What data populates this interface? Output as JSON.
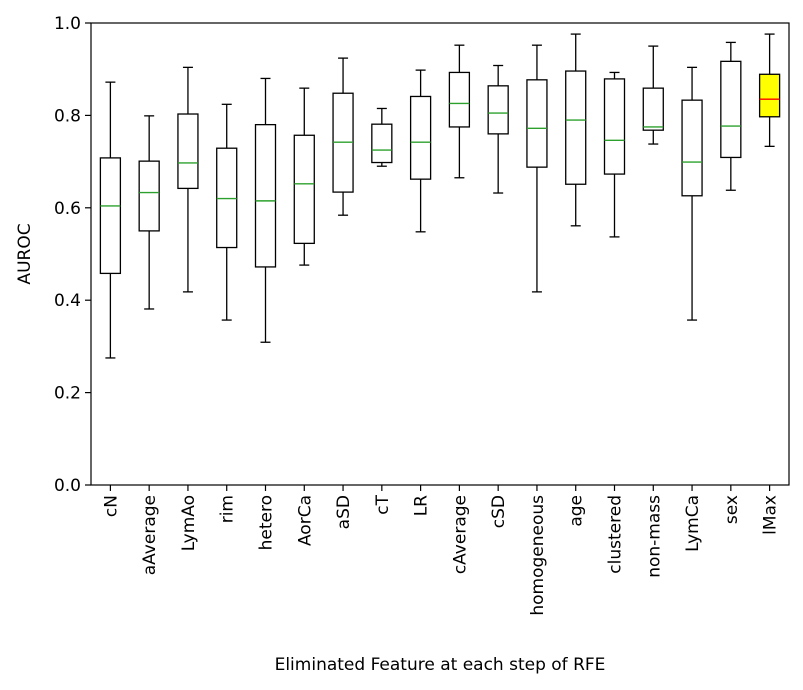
{
  "chart_data": {
    "type": "box",
    "title": "",
    "xlabel": "Eliminated Feature at each step of RFE",
    "ylabel": "AUROC",
    "ylim": [
      0.0,
      1.0
    ],
    "yticks": [
      "0.0",
      "0.2",
      "0.4",
      "0.6",
      "0.8",
      "1.0"
    ],
    "ytick_values": [
      0.0,
      0.2,
      0.4,
      0.6,
      0.8,
      1.0
    ],
    "grid": false,
    "median_color": "#2ca02c",
    "highlight_fill": "#ffff00",
    "highlight_median_color": "#ff0000",
    "categories": [
      "cN",
      "aAverage",
      "LymAo",
      "rim",
      "hetero",
      "AorCa",
      "aSD",
      "cT",
      "LR",
      "cAverage",
      "cSD",
      "homogeneous",
      "age",
      "clustered",
      "non-mass",
      "LymCa",
      "sex",
      "lMax"
    ],
    "boxes": [
      {
        "min": 0.275,
        "q1": 0.458,
        "median": 0.604,
        "q3": 0.708,
        "max": 0.872
      },
      {
        "min": 0.381,
        "q1": 0.55,
        "median": 0.633,
        "q3": 0.701,
        "max": 0.799
      },
      {
        "min": 0.418,
        "q1": 0.642,
        "median": 0.697,
        "q3": 0.803,
        "max": 0.904
      },
      {
        "min": 0.357,
        "q1": 0.514,
        "median": 0.62,
        "q3": 0.729,
        "max": 0.824
      },
      {
        "min": 0.309,
        "q1": 0.472,
        "median": 0.615,
        "q3": 0.78,
        "max": 0.88
      },
      {
        "min": 0.476,
        "q1": 0.523,
        "median": 0.652,
        "q3": 0.757,
        "max": 0.859
      },
      {
        "min": 0.584,
        "q1": 0.634,
        "median": 0.742,
        "q3": 0.848,
        "max": 0.924
      },
      {
        "min": 0.69,
        "q1": 0.698,
        "median": 0.725,
        "q3": 0.781,
        "max": 0.815
      },
      {
        "min": 0.548,
        "q1": 0.662,
        "median": 0.742,
        "q3": 0.841,
        "max": 0.898
      },
      {
        "min": 0.665,
        "q1": 0.775,
        "median": 0.826,
        "q3": 0.893,
        "max": 0.952
      },
      {
        "min": 0.632,
        "q1": 0.76,
        "median": 0.805,
        "q3": 0.864,
        "max": 0.908
      },
      {
        "min": 0.418,
        "q1": 0.688,
        "median": 0.772,
        "q3": 0.877,
        "max": 0.952
      },
      {
        "min": 0.561,
        "q1": 0.651,
        "median": 0.79,
        "q3": 0.896,
        "max": 0.976
      },
      {
        "min": 0.537,
        "q1": 0.673,
        "median": 0.746,
        "q3": 0.879,
        "max": 0.893
      },
      {
        "min": 0.738,
        "q1": 0.768,
        "median": 0.775,
        "q3": 0.859,
        "max": 0.95
      },
      {
        "min": 0.357,
        "q1": 0.626,
        "median": 0.699,
        "q3": 0.833,
        "max": 0.904
      },
      {
        "min": 0.638,
        "q1": 0.709,
        "median": 0.777,
        "q3": 0.917,
        "max": 0.958
      },
      {
        "min": 0.733,
        "q1": 0.797,
        "median": 0.835,
        "q3": 0.889,
        "max": 0.976
      }
    ],
    "highlight_index": 17
  }
}
